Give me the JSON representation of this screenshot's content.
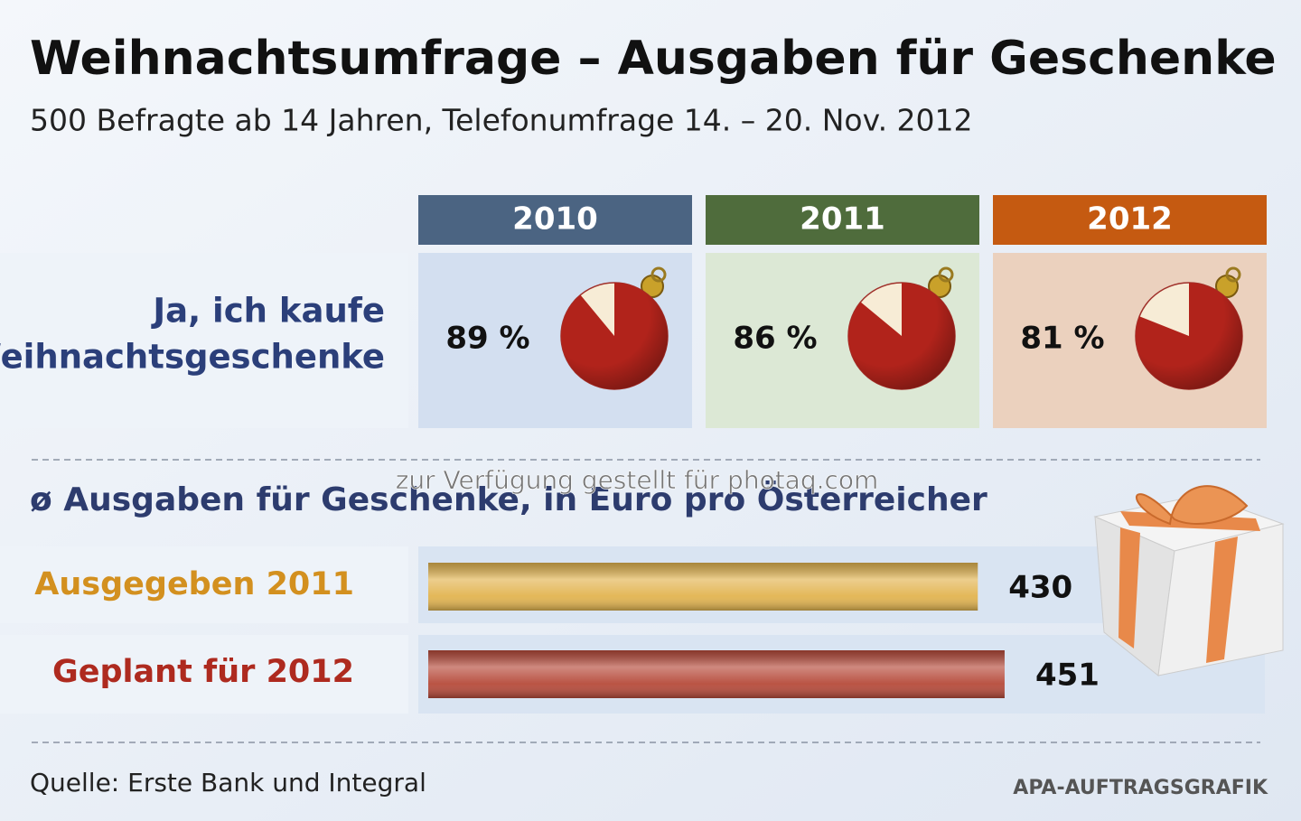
{
  "title": "Weihnachtsumfrage – Ausgaben für Geschenke",
  "subtitle": "500 Befragte ab 14 Jahren, Telefonumfrage 14. – 20. Nov. 2012",
  "watermark": "zur Verfügung gestellt für photaq.com",
  "source": "Quelle: Erste Bank und Integral",
  "credit": "APA-AUFTRAGSGRAFIK",
  "chart_data": [
    {
      "type": "pie",
      "title": [
        "Ja, ich kaufe",
        "Weihnachtsgeschenke"
      ],
      "categories": [
        "2010",
        "2011",
        "2012"
      ],
      "values": [
        89,
        86,
        81
      ],
      "value_labels": [
        "89 %",
        "86 %",
        "81 %"
      ],
      "colors": [
        "#4b6482",
        "#4f6c3c",
        "#c55a11"
      ],
      "panel_colors": [
        "#d3dff0",
        "#dce8d5",
        "#ebd1be"
      ],
      "color": "#b1231b"
    },
    {
      "type": "bar",
      "orientation": "horizontal",
      "title": "ø Ausgaben für Geschenke, in Euro pro Österreicher",
      "categories": [
        "Ausgegeben 2011",
        "Geplant für 2012"
      ],
      "values": [
        430,
        451
      ],
      "colors": [
        "#e2b450",
        "#b64a3a"
      ],
      "label_colors": [
        "#d3901f",
        "#ae2a1f"
      ]
    }
  ]
}
